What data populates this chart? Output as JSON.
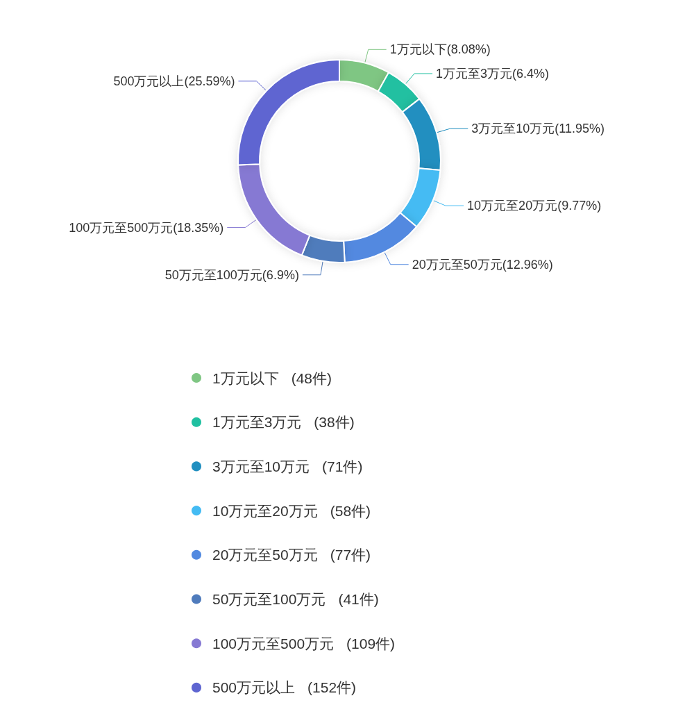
{
  "chart_data": {
    "type": "donut",
    "categories": [
      "1万元以下",
      "1万元至3万元",
      "3万元至10万元",
      "10万元至20万元",
      "20万元至50万元",
      "50万元至100万元",
      "100万元至500万元",
      "500万元以上"
    ],
    "values": [
      8.08,
      6.4,
      11.95,
      9.77,
      12.96,
      6.9,
      18.35,
      25.59
    ],
    "colors": [
      "#7fc683",
      "#20c0a1",
      "#218fc0",
      "#44bbf3",
      "#5289e0",
      "#4f7bbc",
      "#8679d3",
      "#5e65d1"
    ],
    "value_labels": [
      "1万元以下(8.08%)",
      "1万元至3万元(6.4%)",
      "3万元至10万元(11.95%)",
      "10万元至20万元(9.77%)",
      "20万元至50万元(12.96%)",
      "50万元至100万元(6.9%)",
      "100万元至500万元(18.35%)",
      "500万元以上(25.59%)"
    ],
    "annotations": [
      "(48件)",
      "(38件)",
      "(71件)",
      "(58件)",
      "(77件)",
      "(41件)",
      "(109件)",
      "(152件)"
    ],
    "legend": "bottom"
  }
}
